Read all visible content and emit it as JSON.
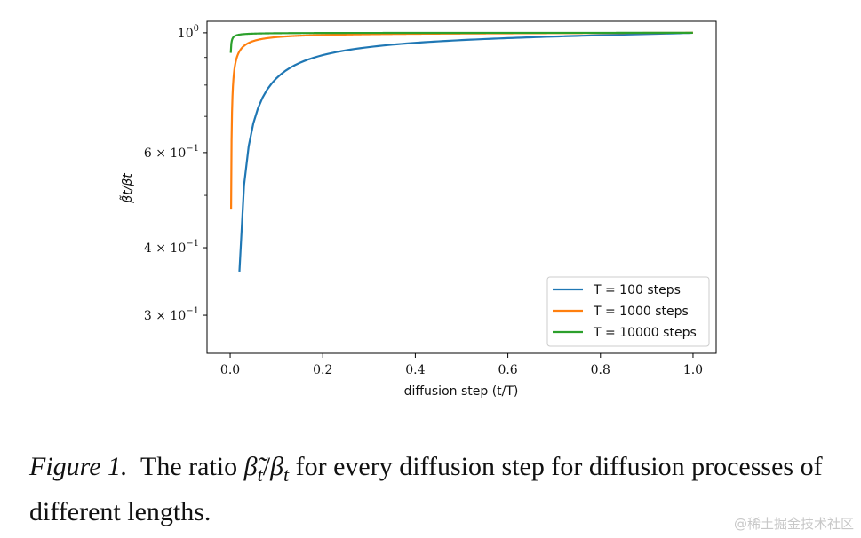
{
  "chart_data": {
    "type": "line",
    "title": "",
    "xlabel": "diffusion step (t/T)",
    "ylabel": "β̃t/βt",
    "xlim": [
      -0.05,
      1.05
    ],
    "ylim": [
      0.255,
      1.05
    ],
    "yscale": "log",
    "xticks": [
      0.0,
      0.2,
      0.4,
      0.6,
      0.8,
      1.0
    ],
    "xtick_labels": [
      "0.0",
      "0.2",
      "0.4",
      "0.6",
      "0.8",
      "1.0"
    ],
    "yticks": [
      {
        "value": 1.0,
        "base": "10",
        "exp": "0",
        "prefix": ""
      },
      {
        "value": 0.6,
        "base": "10",
        "exp": "−1",
        "prefix": "6 × "
      },
      {
        "value": 0.4,
        "base": "10",
        "exp": "−1",
        "prefix": "4 × "
      },
      {
        "value": 0.3,
        "base": "10",
        "exp": "−1",
        "prefix": "3 × "
      }
    ],
    "minor_yticks": [
      0.5,
      0.7,
      0.8,
      0.9
    ],
    "legend_position": "lower-right",
    "series": [
      {
        "name": "T = 100 steps",
        "color": "#1f77b4",
        "T": 100
      },
      {
        "name": "T = 1000 steps",
        "color": "#ff7f0e",
        "T": 1000
      },
      {
        "name": "T = 10000 steps",
        "color": "#2ca02c",
        "T": 10000
      }
    ]
  },
  "caption": {
    "figure_label": "Figure 1.",
    "text_before": "The ratio",
    "math_beta_tilde": "β̃",
    "math_t1": "t",
    "math_slash": "/",
    "math_beta": "β",
    "math_t2": "t",
    "text_after": "for every diffusion step for diffusion processes of different lengths."
  },
  "watermark": "@稀土掘金技术社区"
}
